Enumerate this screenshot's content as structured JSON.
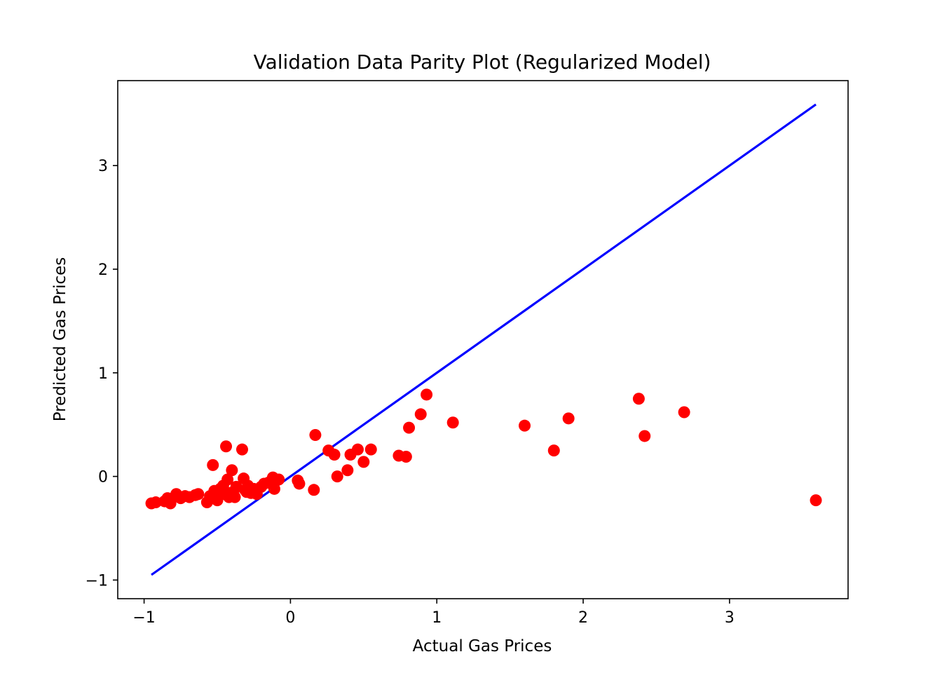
{
  "chart_data": {
    "type": "scatter",
    "title": "Validation Data Parity Plot (Regularized Model)",
    "xlabel": "Actual Gas Prices",
    "ylabel": "Predicted Gas Prices",
    "xlim": [
      -1.18,
      3.81
    ],
    "ylim": [
      -1.18,
      3.82
    ],
    "xticks": [
      -1,
      0,
      1,
      2,
      3
    ],
    "xtick_labels": [
      "−1",
      "0",
      "1",
      "2",
      "3"
    ],
    "yticks": [
      -1,
      0,
      1,
      2,
      3
    ],
    "ytick_labels": [
      "−1",
      "0",
      "1",
      "2",
      "3"
    ],
    "grid": false,
    "colors": {
      "points": "#ff0000",
      "line": "#0000ff"
    },
    "series": [
      {
        "type": "scatter",
        "x": [
          -0.95,
          -0.92,
          -0.86,
          -0.84,
          -0.82,
          -0.78,
          -0.75,
          -0.72,
          -0.69,
          -0.65,
          -0.63,
          -0.57,
          -0.55,
          -0.53,
          -0.52,
          -0.5,
          -0.48,
          -0.46,
          -0.45,
          -0.44,
          -0.43,
          -0.42,
          -0.41,
          -0.4,
          -0.39,
          -0.38,
          -0.37,
          -0.33,
          -0.32,
          -0.31,
          -0.3,
          -0.29,
          -0.27,
          -0.25,
          -0.23,
          -0.2,
          -0.18,
          -0.15,
          -0.12,
          -0.11,
          -0.1,
          -0.08,
          0.05,
          0.06,
          0.16,
          0.17,
          0.26,
          0.3,
          0.32,
          0.39,
          0.41,
          0.46,
          0.5,
          0.55,
          0.74,
          0.79,
          0.81,
          0.89,
          0.93,
          1.11,
          1.6,
          1.8,
          1.9,
          2.38,
          2.42,
          2.69,
          3.59
        ],
        "y": [
          -0.26,
          -0.25,
          -0.24,
          -0.21,
          -0.26,
          -0.17,
          -0.21,
          -0.19,
          -0.2,
          -0.18,
          -0.17,
          -0.25,
          -0.19,
          0.11,
          -0.14,
          -0.23,
          -0.12,
          -0.09,
          -0.17,
          0.29,
          -0.03,
          -0.2,
          -0.16,
          0.06,
          -0.15,
          -0.2,
          -0.1,
          0.26,
          -0.02,
          -0.13,
          -0.15,
          -0.09,
          -0.16,
          -0.12,
          -0.17,
          -0.1,
          -0.07,
          -0.06,
          -0.01,
          -0.12,
          -0.04,
          -0.03,
          -0.04,
          -0.07,
          -0.13,
          0.4,
          0.25,
          0.21,
          0.0,
          0.06,
          0.21,
          0.26,
          0.14,
          0.26,
          0.2,
          0.19,
          0.47,
          0.6,
          0.79,
          0.52,
          0.49,
          0.25,
          0.56,
          0.75,
          0.39,
          0.62,
          -0.23
        ]
      },
      {
        "type": "line",
        "x": [
          -0.95,
          3.59
        ],
        "y": [
          -0.95,
          3.59
        ]
      }
    ]
  }
}
